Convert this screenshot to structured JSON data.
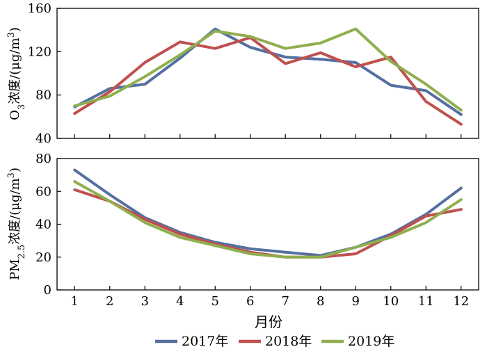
{
  "chart_data": [
    {
      "type": "line",
      "ylabel": "O3浓度/(μg/m3)",
      "ylabel_parts": {
        "main": "O",
        "sub": "3",
        "rest": "浓度/(μg/m",
        "sup": "3",
        "close": ")"
      },
      "ylim": [
        40,
        160
      ],
      "yticks": [
        40,
        80,
        120,
        160
      ],
      "x": [
        1,
        2,
        3,
        4,
        5,
        6,
        7,
        8,
        9,
        10,
        11,
        12
      ],
      "series": [
        {
          "name": "2017年",
          "values": [
            69,
            86,
            90,
            114,
            141,
            124,
            115,
            113,
            110,
            89,
            84,
            62
          ]
        },
        {
          "name": "2018年",
          "values": [
            63,
            83,
            110,
            129,
            123,
            133,
            109,
            119,
            106,
            115,
            74,
            53
          ]
        },
        {
          "name": "2019年",
          "values": [
            70,
            79,
            97,
            117,
            139,
            134,
            123,
            128,
            141,
            111,
            90,
            66
          ]
        }
      ]
    },
    {
      "type": "line",
      "ylabel": "PM2.5浓度/(μg/m3)",
      "ylabel_parts": {
        "main": "PM",
        "sub": "2.5",
        "rest": "浓度/(μg/m",
        "sup": "3",
        "close": ")"
      },
      "xlabel": "月份",
      "ylim": [
        0,
        80
      ],
      "yticks": [
        0,
        20,
        40,
        60,
        80
      ],
      "x": [
        1,
        2,
        3,
        4,
        5,
        6,
        7,
        8,
        9,
        10,
        11,
        12
      ],
      "series": [
        {
          "name": "2017年",
          "values": [
            73,
            58,
            44,
            35,
            29,
            25,
            23,
            21,
            26,
            34,
            46,
            62
          ]
        },
        {
          "name": "2018年",
          "values": [
            61,
            54,
            43,
            34,
            28,
            23,
            20,
            20,
            22,
            33,
            45,
            49
          ]
        },
        {
          "name": "2019年",
          "values": [
            66,
            54,
            41,
            32,
            27,
            22,
            20,
            20,
            26,
            32,
            41,
            55
          ]
        }
      ]
    }
  ],
  "legend": {
    "placement": "bottom",
    "items": [
      {
        "label": "2017年",
        "color": "#5470a0"
      },
      {
        "label": "2018年",
        "color": "#c0504d"
      },
      {
        "label": "2019年",
        "color": "#8faf4f"
      }
    ]
  },
  "colors": {
    "2017": "#5470a0",
    "2018": "#c0504d",
    "2019": "#8faf4f"
  }
}
